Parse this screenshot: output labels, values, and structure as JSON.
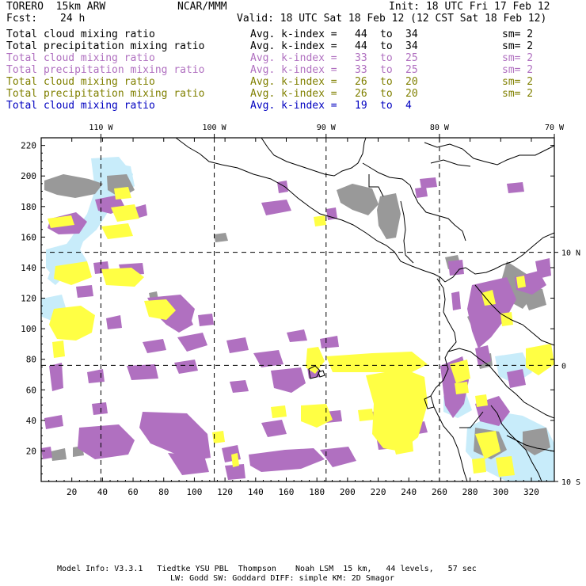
{
  "header": {
    "model": "TORERO  15km ARW",
    "org": "NCAR/MMM",
    "init": "Init: 18 UTC Fri 17 Feb 12",
    "fcst_label": "Fcst:",
    "fcst_value": "24 h",
    "valid": "Valid: 18 UTC Sat 18 Feb 12 (12 CST Sat 18 Feb 12)"
  },
  "legend": [
    {
      "field": "Total cloud mixing ratio",
      "avg": "Avg. k-index =",
      "from": "44",
      "to_word": "to",
      "to": "34",
      "sm": "sm= 2",
      "color": "#000000"
    },
    {
      "field": "Total precipitation mixing ratio",
      "avg": "Avg. k-index =",
      "from": "44",
      "to_word": "to",
      "to": "34",
      "sm": "sm= 2",
      "color": "#000000"
    },
    {
      "field": "Total cloud mixing ratio",
      "avg": "Avg. k-index =",
      "from": "33",
      "to_word": "to",
      "to": "25",
      "sm": "sm= 2",
      "color": "#b070c0"
    },
    {
      "field": "Total precipitation mixing ratio",
      "avg": "Avg. k-index =",
      "from": "33",
      "to_word": "to",
      "to": "25",
      "sm": "sm= 2",
      "color": "#b070c0"
    },
    {
      "field": "Total cloud mixing ratio",
      "avg": "Avg. k-index =",
      "from": "26",
      "to_word": "to",
      "to": "20",
      "sm": "sm= 2",
      "color": "#808000"
    },
    {
      "field": "Total precipitation mixing ratio",
      "avg": "Avg. k-index =",
      "from": "26",
      "to_word": "to",
      "to": "20",
      "sm": "sm= 2",
      "color": "#808000"
    },
    {
      "field": "Total cloud mixing ratio",
      "avg": "Avg. k-index =",
      "from": "19",
      "to_word": "to",
      "to": "4",
      "sm": "",
      "color": "#0000c0"
    }
  ],
  "map": {
    "lon_labels": [
      "110 W",
      "100 W",
      "90 W",
      "80 W",
      "70 W"
    ],
    "lat_labels": [
      "10 N",
      "0",
      "10 S"
    ],
    "x_ticks": [
      20,
      40,
      60,
      80,
      100,
      120,
      140,
      160,
      180,
      200,
      220,
      240,
      260,
      280,
      300,
      320
    ],
    "y_ticks": [
      20,
      40,
      60,
      80,
      100,
      120,
      140,
      160,
      180,
      200,
      220
    ],
    "grid_x_range": [
      0,
      335
    ],
    "grid_y_range": [
      0,
      225
    ],
    "meridian_grid_x": [
      39,
      113,
      186,
      260
    ],
    "parallel_grid_y": [
      150,
      76
    ],
    "colors": {
      "gray": "#999999",
      "purple": "#b070c0",
      "yellow": "#ffff44",
      "lightblue": "#c8ecfa",
      "coast": "#000000"
    }
  },
  "footer": {
    "line1": "Model Info: V3.3.1   Tiedtke YSU PBL  Thompson    Noah LSM  15 km,   44 levels,   57 sec",
    "line2": "LW: Godd SW: Goddard DIFF: simple KM: 2D Smagor"
  }
}
